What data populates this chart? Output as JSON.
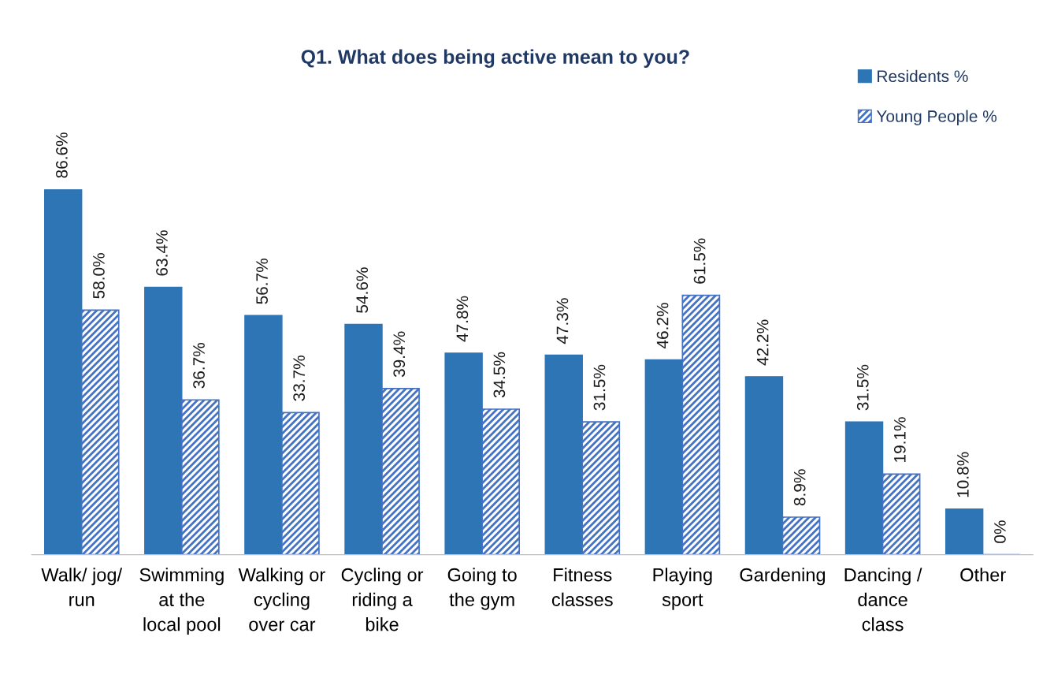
{
  "chart_data": {
    "type": "bar",
    "title": "Q1. What does being active mean to you?",
    "categories": [
      "Walk/ jog/\nrun",
      "Swimming\nat the\nlocal pool",
      "Walking or\ncycling\nover car",
      "Cycling or\nriding a\nbike",
      "Going to\nthe gym",
      "Fitness\nclasses",
      "Playing\nsport",
      "Gardening",
      "Dancing /\ndance\nclass",
      "Other"
    ],
    "series": [
      {
        "name": "Residents %",
        "color": "#2e75b6",
        "values": [
          86.6,
          63.4,
          56.7,
          54.6,
          47.8,
          47.3,
          46.2,
          42.2,
          31.5,
          10.8
        ],
        "value_labels": [
          "86.6%",
          "63.4%",
          "56.7%",
          "54.6%",
          "47.8%",
          "47.3%",
          "46.2%",
          "42.2%",
          "31.5%",
          "10.8%"
        ]
      },
      {
        "name": "Young People %",
        "color": "#4472c4",
        "values": [
          58.0,
          36.7,
          33.7,
          39.4,
          34.5,
          31.5,
          61.5,
          8.9,
          19.1,
          0
        ],
        "value_labels": [
          "58.0%",
          "36.7%",
          "33.7%",
          "39.4%",
          "34.5%",
          "31.5%",
          "61.5%",
          "8.9%",
          "19.1%",
          "0%"
        ]
      }
    ],
    "legend": "top right",
    "grid": false
  }
}
